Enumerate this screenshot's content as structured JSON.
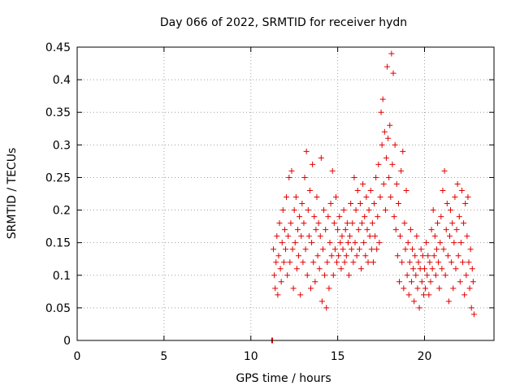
{
  "chart_data": {
    "type": "scatter",
    "title": "Day 066 of 2022, SRMTID for receiver hydn",
    "xlabel": "GPS time / hours",
    "ylabel": "SRMTID / TECUs",
    "xlim": [
      0,
      24
    ],
    "ylim": [
      0,
      0.45
    ],
    "xticks": [
      0,
      5,
      10,
      15,
      20
    ],
    "xtick_labels": [
      "0",
      "5",
      "10",
      "15",
      "20"
    ],
    "yticks": [
      0,
      0.05,
      0.1,
      0.15,
      0.2,
      0.25,
      0.3,
      0.35,
      0.4,
      0.45
    ],
    "ytick_labels": [
      "0",
      "0.05",
      "0.1",
      "0.15",
      "0.2",
      "0.25",
      "0.3",
      "0.35",
      "0.4",
      "0.45"
    ],
    "grid": true,
    "marker": "+",
    "color": "#e00000",
    "series": [
      {
        "name": "SRMTID",
        "points": [
          [
            11.2,
            0.0
          ],
          [
            11.22,
            0.0
          ],
          [
            11.25,
            0.0
          ],
          [
            11.3,
            0.14
          ],
          [
            11.35,
            0.1
          ],
          [
            11.4,
            0.08
          ],
          [
            11.45,
            0.12
          ],
          [
            11.5,
            0.16
          ],
          [
            11.55,
            0.07
          ],
          [
            11.6,
            0.13
          ],
          [
            11.65,
            0.18
          ],
          [
            11.7,
            0.11
          ],
          [
            11.75,
            0.09
          ],
          [
            11.8,
            0.15
          ],
          [
            11.85,
            0.2
          ],
          [
            11.9,
            0.12
          ],
          [
            11.95,
            0.17
          ],
          [
            12.0,
            0.14
          ],
          [
            12.05,
            0.22
          ],
          [
            12.1,
            0.1
          ],
          [
            12.15,
            0.16
          ],
          [
            12.2,
            0.25
          ],
          [
            12.25,
            0.12
          ],
          [
            12.3,
            0.18
          ],
          [
            12.35,
            0.26
          ],
          [
            12.4,
            0.14
          ],
          [
            12.45,
            0.08
          ],
          [
            12.5,
            0.2
          ],
          [
            12.55,
            0.15
          ],
          [
            12.6,
            0.22
          ],
          [
            12.65,
            0.11
          ],
          [
            12.7,
            0.17
          ],
          [
            12.75,
            0.13
          ],
          [
            12.8,
            0.19
          ],
          [
            12.85,
            0.07
          ],
          [
            12.9,
            0.16
          ],
          [
            12.95,
            0.21
          ],
          [
            13.0,
            0.12
          ],
          [
            13.05,
            0.18
          ],
          [
            13.1,
            0.25
          ],
          [
            13.15,
            0.14
          ],
          [
            13.2,
            0.29
          ],
          [
            13.25,
            0.1
          ],
          [
            13.3,
            0.2
          ],
          [
            13.35,
            0.16
          ],
          [
            13.4,
            0.23
          ],
          [
            13.45,
            0.08
          ],
          [
            13.5,
            0.15
          ],
          [
            13.55,
            0.27
          ],
          [
            13.6,
            0.12
          ],
          [
            13.65,
            0.19
          ],
          [
            13.7,
            0.09
          ],
          [
            13.75,
            0.17
          ],
          [
            13.8,
            0.22
          ],
          [
            13.85,
            0.13
          ],
          [
            13.9,
            0.18
          ],
          [
            13.95,
            0.11
          ],
          [
            14.0,
            0.16
          ],
          [
            14.05,
            0.28
          ],
          [
            14.1,
            0.06
          ],
          [
            14.15,
            0.14
          ],
          [
            14.2,
            0.2
          ],
          [
            14.25,
            0.1
          ],
          [
            14.3,
            0.17
          ],
          [
            14.35,
            0.05
          ],
          [
            14.4,
            0.12
          ],
          [
            14.45,
            0.19
          ],
          [
            14.5,
            0.08
          ],
          [
            14.55,
            0.15
          ],
          [
            14.6,
            0.21
          ],
          [
            14.65,
            0.13
          ],
          [
            14.7,
            0.26
          ],
          [
            14.75,
            0.1
          ],
          [
            14.8,
            0.18
          ],
          [
            14.85,
            0.14
          ],
          [
            14.9,
            0.22
          ],
          [
            14.95,
            0.12
          ],
          [
            15.0,
            0.17
          ],
          [
            15.05,
            0.13
          ],
          [
            15.1,
            0.19
          ],
          [
            15.15,
            0.15
          ],
          [
            15.2,
            0.11
          ],
          [
            15.25,
            0.16
          ],
          [
            15.3,
            0.14
          ],
          [
            15.35,
            0.2
          ],
          [
            15.4,
            0.12
          ],
          [
            15.45,
            0.17
          ],
          [
            15.5,
            0.13
          ],
          [
            15.55,
            0.18
          ],
          [
            15.6,
            0.15
          ],
          [
            15.65,
            0.1
          ],
          [
            15.7,
            0.16
          ],
          [
            15.75,
            0.21
          ],
          [
            15.8,
            0.14
          ],
          [
            15.85,
            0.18
          ],
          [
            15.9,
            0.12
          ],
          [
            15.95,
            0.25
          ],
          [
            16.0,
            0.15
          ],
          [
            16.05,
            0.2
          ],
          [
            16.1,
            0.13
          ],
          [
            16.15,
            0.23
          ],
          [
            16.2,
            0.17
          ],
          [
            16.25,
            0.14
          ],
          [
            16.3,
            0.21
          ],
          [
            16.35,
            0.11
          ],
          [
            16.4,
            0.18
          ],
          [
            16.45,
            0.24
          ],
          [
            16.5,
            0.15
          ],
          [
            16.55,
            0.19
          ],
          [
            16.6,
            0.13
          ],
          [
            16.65,
            0.22
          ],
          [
            16.7,
            0.17
          ],
          [
            16.75,
            0.12
          ],
          [
            16.8,
            0.2
          ],
          [
            16.85,
            0.16
          ],
          [
            16.9,
            0.23
          ],
          [
            16.95,
            0.14
          ],
          [
            17.0,
            0.18
          ],
          [
            17.05,
            0.12
          ],
          [
            17.1,
            0.21
          ],
          [
            17.15,
            0.16
          ],
          [
            17.2,
            0.25
          ],
          [
            17.25,
            0.14
          ],
          [
            17.3,
            0.19
          ],
          [
            17.35,
            0.27
          ],
          [
            17.4,
            0.15
          ],
          [
            17.45,
            0.22
          ],
          [
            17.5,
            0.35
          ],
          [
            17.55,
            0.3
          ],
          [
            17.6,
            0.37
          ],
          [
            17.65,
            0.24
          ],
          [
            17.7,
            0.32
          ],
          [
            17.75,
            0.2
          ],
          [
            17.8,
            0.28
          ],
          [
            17.85,
            0.42
          ],
          [
            17.9,
            0.31
          ],
          [
            17.95,
            0.25
          ],
          [
            18.0,
            0.33
          ],
          [
            18.05,
            0.22
          ],
          [
            18.1,
            0.44
          ],
          [
            18.15,
            0.27
          ],
          [
            18.2,
            0.41
          ],
          [
            18.25,
            0.19
          ],
          [
            18.3,
            0.3
          ],
          [
            18.35,
            0.17
          ],
          [
            18.4,
            0.24
          ],
          [
            18.45,
            0.13
          ],
          [
            18.5,
            0.21
          ],
          [
            18.55,
            0.09
          ],
          [
            18.6,
            0.16
          ],
          [
            18.65,
            0.26
          ],
          [
            18.7,
            0.12
          ],
          [
            18.75,
            0.29
          ],
          [
            18.8,
            0.08
          ],
          [
            18.85,
            0.18
          ],
          [
            18.9,
            0.14
          ],
          [
            18.95,
            0.23
          ],
          [
            19.0,
            0.1
          ],
          [
            19.05,
            0.15
          ],
          [
            19.1,
            0.07
          ],
          [
            19.15,
            0.12
          ],
          [
            19.2,
            0.17
          ],
          [
            19.25,
            0.09
          ],
          [
            19.3,
            0.14
          ],
          [
            19.35,
            0.11
          ],
          [
            19.4,
            0.06
          ],
          [
            19.45,
            0.13
          ],
          [
            19.5,
            0.1
          ],
          [
            19.55,
            0.16
          ],
          [
            19.6,
            0.08
          ],
          [
            19.65,
            0.12
          ],
          [
            19.7,
            0.05
          ],
          [
            19.75,
            0.11
          ],
          [
            19.8,
            0.14
          ],
          [
            19.85,
            0.09
          ],
          [
            19.9,
            0.13
          ],
          [
            19.95,
            0.07
          ],
          [
            20.0,
            0.11
          ],
          [
            20.05,
            0.08
          ],
          [
            20.1,
            0.15
          ],
          [
            20.15,
            0.1
          ],
          [
            20.2,
            0.13
          ],
          [
            20.25,
            0.07
          ],
          [
            20.3,
            0.12
          ],
          [
            20.35,
            0.09
          ],
          [
            20.4,
            0.17
          ],
          [
            20.45,
            0.11
          ],
          [
            20.5,
            0.2
          ],
          [
            20.55,
            0.13
          ],
          [
            20.6,
            0.16
          ],
          [
            20.65,
            0.1
          ],
          [
            20.7,
            0.14
          ],
          [
            20.75,
            0.18
          ],
          [
            20.8,
            0.12
          ],
          [
            20.85,
            0.08
          ],
          [
            20.9,
            0.15
          ],
          [
            20.95,
            0.19
          ],
          [
            21.0,
            0.11
          ],
          [
            21.05,
            0.23
          ],
          [
            21.1,
            0.14
          ],
          [
            21.15,
            0.26
          ],
          [
            21.2,
            0.1
          ],
          [
            21.25,
            0.17
          ],
          [
            21.3,
            0.21
          ],
          [
            21.35,
            0.13
          ],
          [
            21.4,
            0.06
          ],
          [
            21.45,
            0.16
          ],
          [
            21.5,
            0.2
          ],
          [
            21.55,
            0.12
          ],
          [
            21.6,
            0.18
          ],
          [
            21.65,
            0.08
          ],
          [
            21.7,
            0.15
          ],
          [
            21.75,
            0.22
          ],
          [
            21.8,
            0.11
          ],
          [
            21.85,
            0.17
          ],
          [
            21.9,
            0.24
          ],
          [
            21.95,
            0.13
          ],
          [
            22.0,
            0.19
          ],
          [
            22.05,
            0.09
          ],
          [
            22.1,
            0.15
          ],
          [
            22.15,
            0.23
          ],
          [
            22.2,
            0.12
          ],
          [
            22.25,
            0.18
          ],
          [
            22.3,
            0.07
          ],
          [
            22.35,
            0.21
          ],
          [
            22.4,
            0.1
          ],
          [
            22.45,
            0.16
          ],
          [
            22.5,
            0.22
          ],
          [
            22.55,
            0.12
          ],
          [
            22.6,
            0.08
          ],
          [
            22.65,
            0.14
          ],
          [
            22.7,
            0.05
          ],
          [
            22.75,
            0.11
          ],
          [
            22.8,
            0.09
          ],
          [
            22.85,
            0.04
          ]
        ]
      }
    ]
  }
}
